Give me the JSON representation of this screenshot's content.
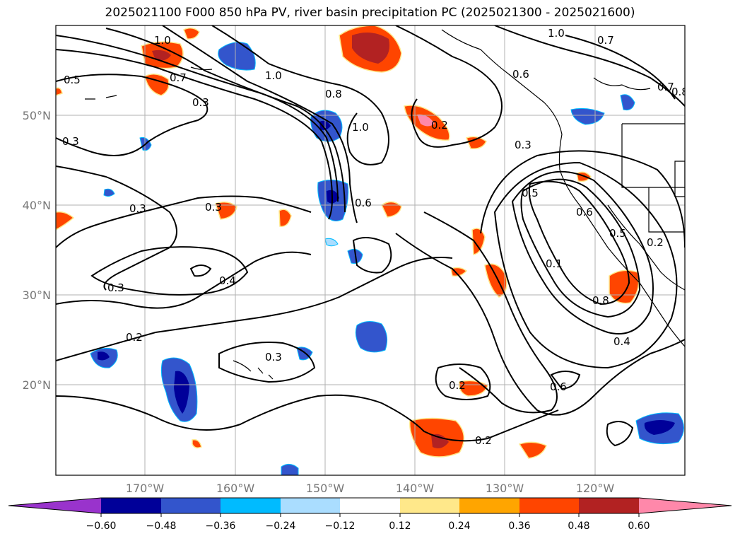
{
  "title": "2025021100 F000 850 hPa PV, river basin precipitation PC (2025021300 - 2025021600)",
  "lat_labels": [
    "50°N",
    "40°N",
    "30°N",
    "20°N"
  ],
  "lon_labels": [
    "170°W",
    "160°W",
    "150°W",
    "140°W",
    "130°W",
    "120°W"
  ],
  "colorbar": {
    "tick_labels": [
      "−0.60",
      "−0.48",
      "−0.36",
      "−0.24",
      "−0.12",
      "0.12",
      "0.24",
      "0.36",
      "0.48",
      "0.60"
    ],
    "colors": [
      "#9933cc",
      "#000099",
      "#3355cc",
      "#00bbff",
      "#aaddff",
      "#ffffff",
      "#ffe88a",
      "#ffa500",
      "#ff4500",
      "#b22222",
      "#ff88aa"
    ]
  },
  "contour_labels": [
    "1.0",
    "0.5",
    "0.7",
    "0.3",
    "1.0",
    "0.8",
    "1.0",
    "0.6",
    "0.7",
    "0.8",
    "1.0",
    "0.3",
    "0.3",
    "0.6",
    "0.5",
    "0.3",
    "0.4",
    "0.3",
    "0.6",
    "0.3",
    "0.2",
    "0.2",
    "0.2",
    "0.3",
    "0.2",
    "0.6",
    "0.2",
    "0.4",
    "0.8",
    "0.5",
    "0.1",
    "0.7"
  ]
}
